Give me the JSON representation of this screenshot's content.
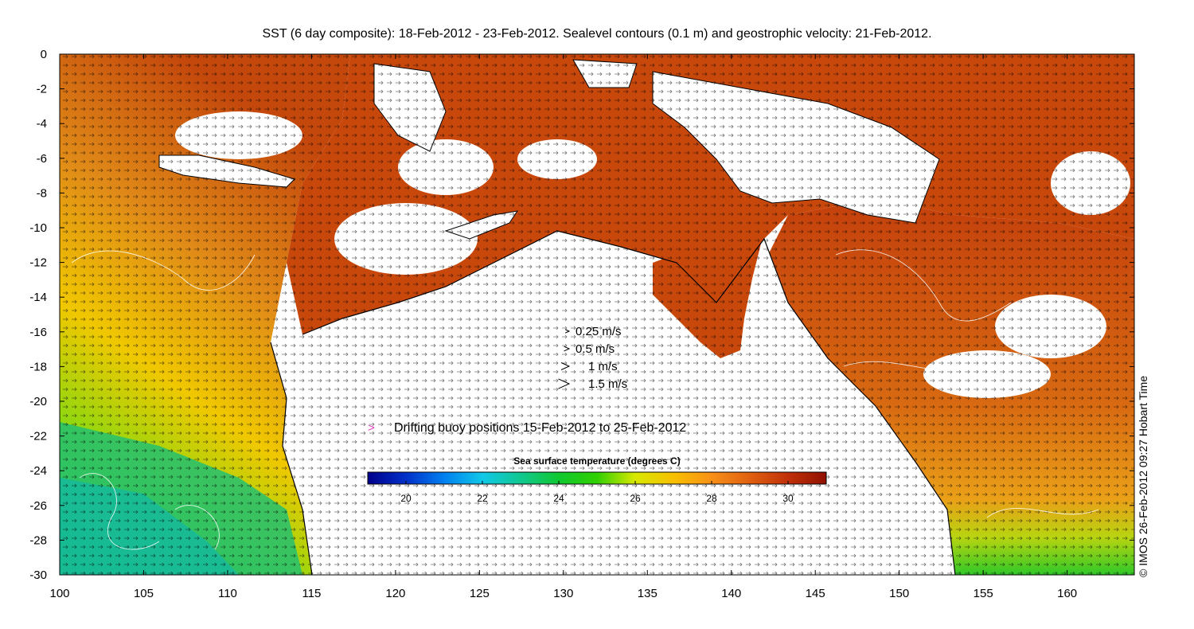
{
  "title": "SST (6 day composite): 18-Feb-2012 - 23-Feb-2012. Sealevel contours (0.1 m) and geostrophic velocity: 21-Feb-2012.",
  "credit": "© IMOS 26-Feb-2012 09:27 Hobart Time",
  "x_axis": {
    "min": 100,
    "max": 164,
    "ticks": [
      "100",
      "105",
      "110",
      "115",
      "120",
      "125",
      "130",
      "135",
      "140",
      "145",
      "150",
      "155",
      "160"
    ]
  },
  "y_axis": {
    "min": -30,
    "max": 0,
    "ticks": [
      "0",
      "-2",
      "-4",
      "-6",
      "-8",
      "-10",
      "-12",
      "-14",
      "-16",
      "-18",
      "-20",
      "-22",
      "-24",
      "-26",
      "-28",
      "-30"
    ]
  },
  "velocity_legend": [
    {
      "label": "0.25 m/s",
      "speed": 0.25
    },
    {
      "label": "0.5 m/s",
      "speed": 0.5
    },
    {
      "label": "1 m/s",
      "speed": 1
    },
    {
      "label": "1.5 m/s",
      "speed": 1.5
    }
  ],
  "buoy_legend": {
    "label": "Drifting buoy positions 15-Feb-2012 to 25-Feb-2012",
    "symbol": ">",
    "color": "#e040c0"
  },
  "colorbar": {
    "title": "Sea surface temperature (degrees C)",
    "min": 19,
    "max": 31,
    "ticks": [
      "20",
      "22",
      "24",
      "26",
      "28",
      "30"
    ],
    "colors": [
      "#00008c",
      "#0030c8",
      "#0080f0",
      "#10c8e8",
      "#10c890",
      "#10c830",
      "#30d000",
      "#d8e800",
      "#f8c000",
      "#f89018",
      "#e06010",
      "#c03008",
      "#901000"
    ]
  }
}
